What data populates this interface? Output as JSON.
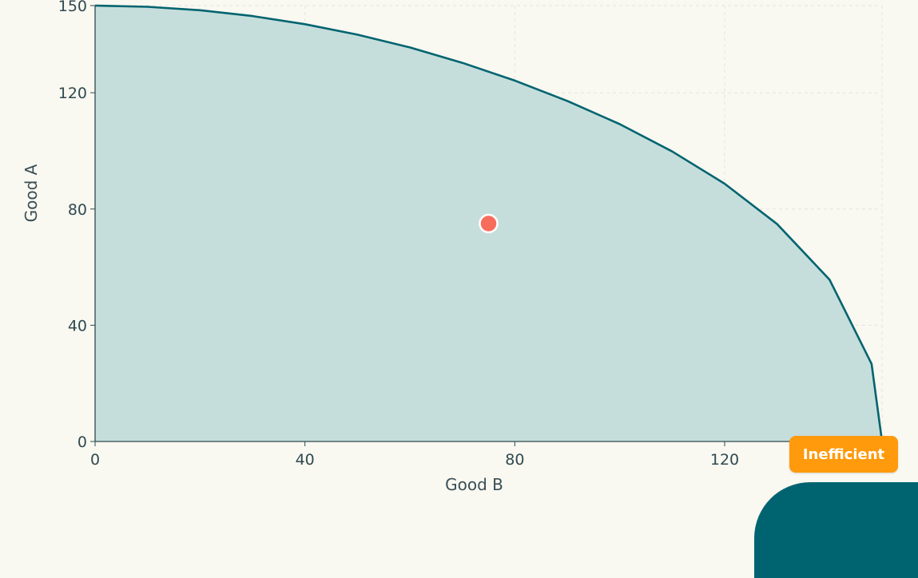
{
  "chart_data": {
    "type": "area",
    "xlabel": "Good B",
    "ylabel": "Good A",
    "xlim": [
      0,
      150
    ],
    "ylim": [
      0,
      150
    ],
    "xticks": [
      0,
      40,
      80,
      120
    ],
    "yticks": [
      0,
      40,
      80,
      120,
      150
    ],
    "grid": true,
    "series": [
      {
        "x": [
          0,
          10,
          20,
          30,
          40,
          50,
          60,
          70,
          80,
          90,
          100,
          110,
          120,
          130,
          140,
          148,
          150
        ],
        "y": [
          150,
          149.6,
          148.4,
          146.4,
          143.6,
          140,
          135.6,
          130.3,
          124.2,
          117.2,
          109.2,
          99.8,
          88.7,
          74.8,
          55.7,
          26.7,
          0
        ]
      }
    ],
    "point": {
      "x": 75,
      "y": 75
    },
    "colors": {
      "line": "#006470",
      "fill": "#c6dedb",
      "point": "#f86c5c",
      "grid": "#e3e6df"
    }
  },
  "status_badge": {
    "label": "Inefficient",
    "color": "#ff9a0d"
  }
}
